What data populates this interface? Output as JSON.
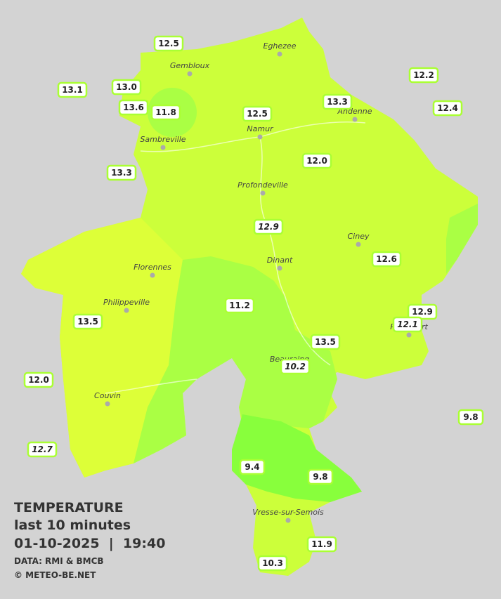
{
  "header": {
    "title": "TEMPERATURE",
    "subtitle": "last 10 minutes",
    "datetime": "01-10-2025  |  19:40",
    "source": "DATA: RMI & BMCB",
    "copyright": "© METEO-BE.NET"
  },
  "cities": [
    "Eghezee",
    "Gembloux",
    "Andenne",
    "Namur",
    "Sambreville",
    "Profondeville",
    "Ciney",
    "Dinant",
    "Florennes",
    "Philippeville",
    "Couvin",
    "Rochefort",
    "Beauraing",
    "Vresse-sur-Semois"
  ],
  "stations": [
    "12.5",
    "13.1",
    "13.0",
    "13.6",
    "11.8",
    "12.5",
    "13.3",
    "12.2",
    "12.4",
    "13.3",
    "12.0",
    "12.9",
    "12.6",
    "11.2",
    "12.9",
    "12.1",
    "13.5",
    "13.5",
    "10.2",
    "12.0",
    "9.8",
    "12.7",
    "9.4",
    "9.8",
    "11.9",
    "10.3"
  ]
}
